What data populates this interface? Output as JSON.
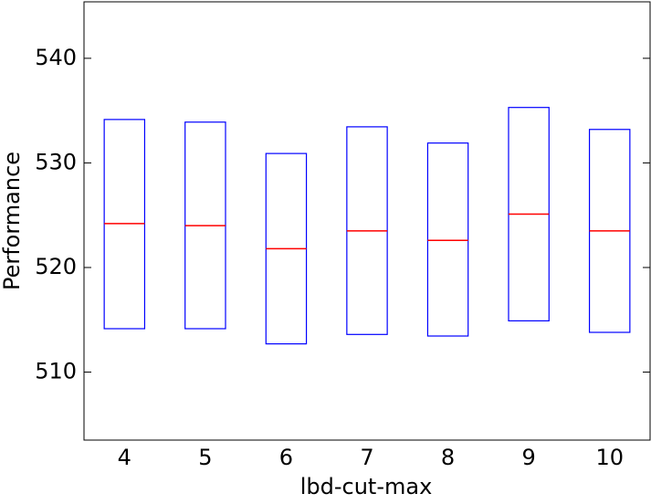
{
  "chart_data": {
    "type": "box",
    "x_label": "lbd-cut-max",
    "y_label": "Performance",
    "categories": [
      "4",
      "5",
      "6",
      "7",
      "8",
      "9",
      "10"
    ],
    "q1": [
      514.15,
      514.15,
      512.7,
      513.6,
      513.45,
      514.9,
      513.8
    ],
    "median": [
      524.2,
      524.0,
      521.8,
      523.5,
      522.6,
      525.1,
      523.5
    ],
    "q3": [
      534.15,
      533.9,
      530.9,
      533.45,
      531.9,
      535.3,
      533.2
    ],
    "box_color": "#0000ff",
    "median_color": "#ff0000",
    "ylim": [
      503.5,
      545.4
    ],
    "yticks": [
      510,
      520,
      530,
      540
    ]
  }
}
